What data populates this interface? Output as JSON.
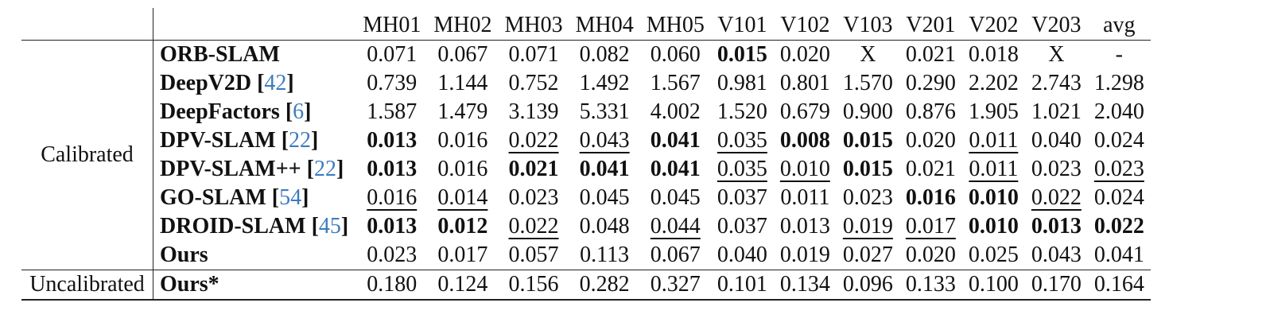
{
  "table": {
    "columns": [
      "MH01",
      "MH02",
      "MH03",
      "MH04",
      "MH05",
      "V101",
      "V102",
      "V103",
      "V201",
      "V202",
      "V203",
      "avg"
    ],
    "groups": {
      "calibrated": "Calibrated",
      "uncalibrated": "Uncalibrated"
    },
    "rows": [
      {
        "name": "ORB-SLAM",
        "ref": "",
        "values": [
          "0.071",
          "0.067",
          "0.071",
          "0.082",
          "0.060",
          "0.015",
          "0.020",
          "X",
          "0.021",
          "0.018",
          "X",
          "-"
        ],
        "styles": [
          "",
          "",
          "",
          "",
          "",
          "b",
          "",
          "",
          "",
          "",
          "",
          ""
        ]
      },
      {
        "name": "DeepV2D",
        "ref": "42",
        "values": [
          "0.739",
          "1.144",
          "0.752",
          "1.492",
          "1.567",
          "0.981",
          "0.801",
          "1.570",
          "0.290",
          "2.202",
          "2.743",
          "1.298"
        ],
        "styles": [
          "",
          "",
          "",
          "",
          "",
          "",
          "",
          "",
          "",
          "",
          "",
          ""
        ]
      },
      {
        "name": "DeepFactors",
        "ref": "6",
        "values": [
          "1.587",
          "1.479",
          "3.139",
          "5.331",
          "4.002",
          "1.520",
          "0.679",
          "0.900",
          "0.876",
          "1.905",
          "1.021",
          "2.040"
        ],
        "styles": [
          "",
          "",
          "",
          "",
          "",
          "",
          "",
          "",
          "",
          "",
          "",
          ""
        ]
      },
      {
        "name": "DPV-SLAM",
        "ref": "22",
        "values": [
          "0.013",
          "0.016",
          "0.022",
          "0.043",
          "0.041",
          "0.035",
          "0.008",
          "0.015",
          "0.020",
          "0.011",
          "0.040",
          "0.024"
        ],
        "styles": [
          "b",
          "",
          "u",
          "u",
          "b",
          "u",
          "b",
          "b",
          "",
          "u",
          "",
          ""
        ]
      },
      {
        "name": "DPV-SLAM++",
        "ref": "22",
        "values": [
          "0.013",
          "0.016",
          "0.021",
          "0.041",
          "0.041",
          "0.035",
          "0.010",
          "0.015",
          "0.021",
          "0.011",
          "0.023",
          "0.023"
        ],
        "styles": [
          "b",
          "",
          "b",
          "b",
          "b",
          "u",
          "u",
          "b",
          "",
          "u",
          "",
          "u"
        ]
      },
      {
        "name": "GO-SLAM",
        "ref": "54",
        "values": [
          "0.016",
          "0.014",
          "0.023",
          "0.045",
          "0.045",
          "0.037",
          "0.011",
          "0.023",
          "0.016",
          "0.010",
          "0.022",
          "0.024"
        ],
        "styles": [
          "u",
          "u",
          "",
          "",
          "",
          "",
          "",
          "",
          "b",
          "b",
          "u",
          ""
        ]
      },
      {
        "name": "DROID-SLAM",
        "ref": "45",
        "values": [
          "0.013",
          "0.012",
          "0.022",
          "0.048",
          "0.044",
          "0.037",
          "0.013",
          "0.019",
          "0.017",
          "0.010",
          "0.013",
          "0.022"
        ],
        "styles": [
          "b",
          "b",
          "u",
          "",
          "u",
          "",
          "",
          "u",
          "u",
          "b",
          "b",
          "b"
        ]
      },
      {
        "name": "Ours",
        "ref": "",
        "values": [
          "0.023",
          "0.017",
          "0.057",
          "0.113",
          "0.067",
          "0.040",
          "0.019",
          "0.027",
          "0.020",
          "0.025",
          "0.043",
          "0.041"
        ],
        "styles": [
          "",
          "",
          "",
          "",
          "",
          "",
          "",
          "",
          "",
          "",
          "",
          ""
        ]
      }
    ],
    "uncal_row": {
      "name": "Ours*",
      "values": [
        "0.180",
        "0.124",
        "0.156",
        "0.282",
        "0.327",
        "0.101",
        "0.134",
        "0.096",
        "0.133",
        "0.100",
        "0.170",
        "0.164"
      ]
    }
  }
}
